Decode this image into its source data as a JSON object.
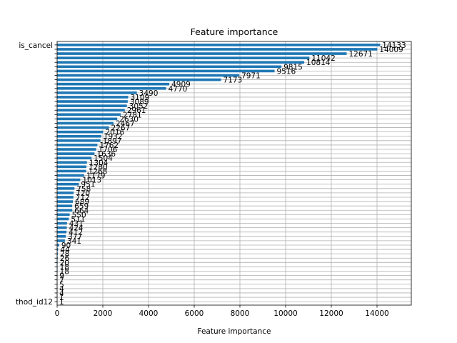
{
  "chart_data": {
    "type": "bar",
    "orientation": "horizontal",
    "title": "Feature importance",
    "xlabel": "Feature importance",
    "ylabel": "",
    "xlim": [
      0,
      15500
    ],
    "xticks": [
      "0",
      "2000",
      "4000",
      "6000",
      "8000",
      "10000",
      "12000",
      "14000"
    ],
    "grid": true,
    "bar_color": "#1f77b4",
    "categories": [
      "is_cancel",
      "",
      "",
      "",
      "",
      "",
      "",
      "",
      "",
      "",
      "",
      "",
      "",
      "",
      "",
      "",
      "",
      "",
      "",
      "",
      "",
      "",
      "",
      "",
      "",
      "",
      "",
      "",
      "",
      "",
      "",
      "",
      "",
      "",
      "",
      "",
      "",
      "",
      "",
      "",
      "",
      "",
      "",
      "",
      "",
      "",
      "",
      "",
      "",
      "",
      "",
      "",
      "",
      "",
      "",
      "",
      "",
      "",
      "",
      "thod_id12"
    ],
    "values": [
      14133,
      14009,
      12671,
      11042,
      10814,
      9815,
      9516,
      7971,
      7173,
      4909,
      4770,
      3490,
      3109,
      3089,
      3052,
      2961,
      2781,
      2630,
      2467,
      2267,
      2016,
      1932,
      1897,
      1762,
      1706,
      1636,
      1504,
      1304,
      1280,
      1268,
      1179,
      1013,
      951,
      758,
      720,
      712,
      689,
      659,
      664,
      550,
      511,
      431,
      424,
      412,
      377,
      341,
      90,
      44,
      28,
      26,
      20,
      18,
      18,
      9,
      7,
      5,
      4,
      4,
      1,
      1
    ]
  }
}
